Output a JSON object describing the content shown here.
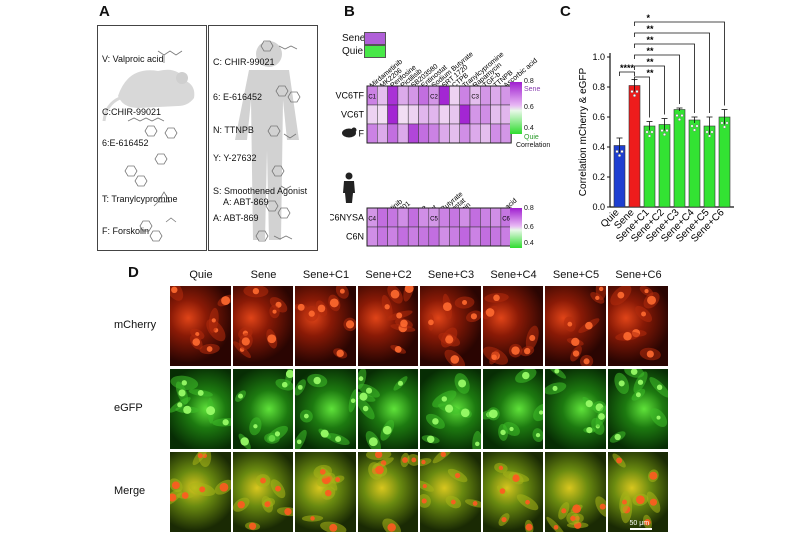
{
  "panels": {
    "A": "A",
    "B": "B",
    "C": "C",
    "D": "D"
  },
  "panelA": {
    "left": [
      "V: Valproic acid",
      "C:CHIR-99021",
      "6:E-616452",
      "T: Tranylcypromine",
      "F: Forskolin"
    ],
    "right": [
      "C: CHIR-99021",
      "6: E-616452",
      "N: TTNPB",
      "Y: Y-27632",
      "S: Smoothened Agonist",
      "A: ABT-869"
    ]
  },
  "panelB": {
    "legend": {
      "sene": "Sene",
      "quie": "Quie"
    },
    "top_cols": [
      "Mirdametinib",
      "MK2206",
      "Perifosine",
      "Pictilisib",
      "SB203580",
      "Entinostat",
      "Sodium Butyrate",
      "SRT 1720",
      "CTPB",
      "Tranylcypromine",
      "Rapamycin",
      "TGF-b",
      "TTNPB",
      "Ascorbic acid"
    ],
    "top_rows": [
      "VC6TF",
      "VC6T",
      "F"
    ],
    "top_marks": {
      "c1": "C1",
      "c2": "C2",
      "c3": "C3"
    },
    "bottom_cols": [
      "Mirdametinib",
      "PD0325901",
      "MK2206",
      "Perifosine",
      "Entinostat",
      "Sodium Butyrate",
      "Tazemetostat",
      "Rapamycin",
      "TGF-b",
      "bFGF",
      "ALK5i",
      "Ascorbic acid",
      "Insulin",
      "a-KG"
    ],
    "bottom_rows": [
      "C6NYSA",
      "C6N"
    ],
    "bottom_marks": {
      "c4": "C4",
      "c5": "C5",
      "c6": "C6"
    },
    "scale_top": {
      "max": "0.8",
      "mid": "0.6",
      "min": "0.4",
      "hi": "Sene",
      "lo": "Quie",
      "title": "Correlation"
    },
    "scale_bottom": {
      "max": "0.8",
      "mid": "0.6",
      "min": "0.4"
    }
  },
  "panelC": {
    "ylabel": "Correlation mCherry & eGFP",
    "sig": [
      "****",
      "**",
      "**",
      "**",
      "**",
      "**",
      "*"
    ],
    "colors": {
      "quie": "#1e3fd1",
      "sene": "#ee1c1c",
      "treat": "#33e333"
    }
  },
  "chart_data": {
    "type": "bar",
    "categories": [
      "Quie",
      "Sene",
      "Sene+C1",
      "Sene+C2",
      "Sene+C3",
      "Sene+C4",
      "Sene+C5",
      "Sene+C6"
    ],
    "values": [
      0.41,
      0.81,
      0.54,
      0.55,
      0.65,
      0.58,
      0.54,
      0.6
    ],
    "errors": [
      0.05,
      0.04,
      0.03,
      0.04,
      0.01,
      0.02,
      0.06,
      0.05
    ],
    "ylabel": "Correlation mCherry & eGFP",
    "ylim": [
      0,
      1.0
    ],
    "ticks": [
      "0.0",
      "0.2",
      "0.4",
      "0.6",
      "0.8",
      "1.0"
    ]
  },
  "panelD": {
    "cols": [
      "Quie",
      "Sene",
      "Sene+C1",
      "Sene+C2",
      "Sene+C3",
      "Sene+C4",
      "Sene+C5",
      "Sene+C6"
    ],
    "rows": [
      "mCherry",
      "eGFP",
      "Merge"
    ],
    "scalebar": "50 μm"
  }
}
